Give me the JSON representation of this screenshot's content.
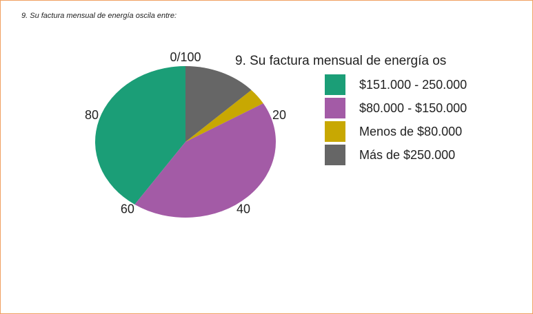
{
  "header": {
    "title": "9. Su factura mensual de energía oscila entre:"
  },
  "chart_data": {
    "type": "pie",
    "title": "9. Su factura mensual de energía os",
    "categories": [
      "$151.000 - 250.000",
      "$80.000 - $150.000",
      "Menos de $80.000",
      "Más de $250.000"
    ],
    "values": [
      40.5,
      43,
      3.5,
      13
    ],
    "colors": [
      "#1b9e77",
      "#a35ba6",
      "#c8a802",
      "#666666"
    ],
    "xlim": [
      0,
      100
    ],
    "xticks": [
      {
        "value": 0,
        "label": "0/100"
      },
      20,
      40,
      60,
      80
    ]
  }
}
